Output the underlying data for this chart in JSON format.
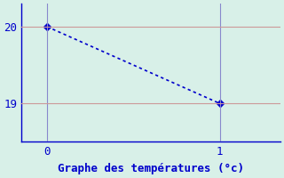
{
  "x": [
    0,
    1
  ],
  "y": [
    20,
    19
  ],
  "line_color": "#0000cc",
  "marker": "D",
  "marker_size": 4,
  "background_color": "#d8f0e8",
  "grid_color_h": "#cc9999",
  "grid_color_v": "#8888cc",
  "xlabel": "Graphe des températures (°c)",
  "xlabel_color": "#0000cc",
  "xlabel_fontsize": 9,
  "tick_color": "#0000cc",
  "tick_fontsize": 9,
  "xlim": [
    -0.15,
    1.35
  ],
  "ylim": [
    18.5,
    20.3
  ],
  "yticks": [
    19,
    20
  ],
  "xticks": [
    0,
    1
  ],
  "spine_color": "#0000cc",
  "line_width": 1.2
}
